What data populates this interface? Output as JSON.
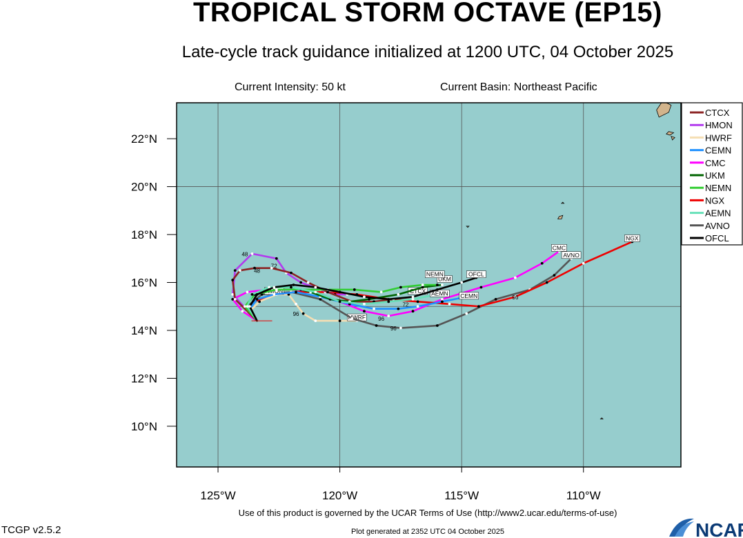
{
  "title": "TROPICAL STORM OCTAVE (EP15)",
  "subtitle": "Late-cycle track guidance initialized at 1200 UTC, 04 October 2025",
  "current_intensity": "Current Intensity: 50 kt",
  "current_basin": "Current Basin: Northeast Pacific",
  "footer": {
    "terms": "Use of this product is governed by the UCAR Terms of Use (http://www2.ucar.edu/terms-of-use)",
    "generated": "Plot generated at 2352 UTC   04 October 2025",
    "version": "TCGP v2.5.2",
    "logo_text": "NCAR"
  },
  "colors": {
    "ocean": "#96cdcd",
    "land": "#d2b48c",
    "grid": "#555555"
  },
  "axes": {
    "lon_range": [
      -126.7,
      -106
    ],
    "lat_range": [
      8.3,
      23.5
    ],
    "lon_ticks": [
      {
        "value": -125,
        "label": "125°W"
      },
      {
        "value": -120,
        "label": "120°W"
      },
      {
        "value": -115,
        "label": "115°W"
      },
      {
        "value": -110,
        "label": "110°W"
      }
    ],
    "lat_ticks": [
      {
        "value": 10,
        "label": "10°N"
      },
      {
        "value": 12,
        "label": "12°N"
      },
      {
        "value": 14,
        "label": "14°N"
      },
      {
        "value": 16,
        "label": "16°N"
      },
      {
        "value": 18,
        "label": "18°N"
      },
      {
        "value": 20,
        "label": "20°N"
      },
      {
        "value": 22,
        "label": "22°N"
      }
    ],
    "grid_lons": [
      -125,
      -120,
      -115,
      -110
    ],
    "grid_lats": [
      15,
      20
    ]
  },
  "storm_position": {
    "lon": -123.4,
    "lat": 14.4
  },
  "legend": [
    {
      "name": "CTCX",
      "color": "#8b2323"
    },
    {
      "name": "HMON",
      "color": "#b23aee"
    },
    {
      "name": "HWRF",
      "color": "#f5deb3"
    },
    {
      "name": "CEMN",
      "color": "#1e90ff"
    },
    {
      "name": "CMC",
      "color": "#ff00ff"
    },
    {
      "name": "UKM",
      "color": "#006400"
    },
    {
      "name": "NEMN",
      "color": "#32cd32"
    },
    {
      "name": "NGX",
      "color": "#ee0000"
    },
    {
      "name": "AEMN",
      "color": "#66e0b8"
    },
    {
      "name": "AVNO",
      "color": "#555555"
    },
    {
      "name": "OFCL",
      "color": "#000000"
    }
  ],
  "tracks": [
    {
      "name": "HWRF",
      "color": "#f5deb3",
      "points": [
        [
          -123.4,
          14.4
        ],
        [
          -123.7,
          14.8
        ],
        [
          -123.3,
          15.2
        ],
        [
          -122.6,
          15.5
        ],
        [
          -122.1,
          15.5
        ],
        [
          -121.8,
          15.1
        ],
        [
          -121.5,
          14.7
        ],
        [
          -121.0,
          14.4
        ],
        [
          -120.0,
          14.4
        ],
        [
          -119.3,
          14.4
        ]
      ],
      "labels": [
        {
          "t": "96",
          "lon": -121.8,
          "lat": 14.6
        }
      ],
      "end_label": {
        "text": "HWRF",
        "lon": -119.3,
        "lat": 14.4
      }
    },
    {
      "name": "AVNO",
      "color": "#555555",
      "points": [
        [
          -123.4,
          14.4
        ],
        [
          -123.8,
          15.0
        ],
        [
          -123.2,
          15.5
        ],
        [
          -122.0,
          15.6
        ],
        [
          -120.8,
          15.3
        ],
        [
          -119.5,
          14.5
        ],
        [
          -118.5,
          14.2
        ],
        [
          -117.5,
          14.1
        ],
        [
          -116.0,
          14.2
        ],
        [
          -114.8,
          14.7
        ],
        [
          -113.6,
          15.3
        ],
        [
          -112.2,
          15.7
        ],
        [
          -111.2,
          16.3
        ],
        [
          -110.5,
          17.0
        ]
      ],
      "labels": [
        {
          "t": "96",
          "lon": -117.8,
          "lat": 14.0
        }
      ],
      "end_label": {
        "text": "AVNO",
        "lon": -110.5,
        "lat": 17.0
      }
    },
    {
      "name": "CMC",
      "color": "#ff00ff",
      "points": [
        [
          -123.4,
          14.4
        ],
        [
          -124.0,
          14.8
        ],
        [
          -124.4,
          15.3
        ],
        [
          -123.8,
          15.6
        ],
        [
          -123.0,
          15.7
        ],
        [
          -122.0,
          15.7
        ],
        [
          -121.0,
          15.6
        ],
        [
          -120.0,
          15.2
        ],
        [
          -119.0,
          14.8
        ],
        [
          -118.0,
          14.6
        ],
        [
          -117.0,
          14.8
        ],
        [
          -115.8,
          15.3
        ],
        [
          -114.2,
          15.8
        ],
        [
          -112.8,
          16.2
        ],
        [
          -111.7,
          16.8
        ],
        [
          -111.0,
          17.3
        ]
      ],
      "labels": [
        {
          "t": "96",
          "lon": -118.3,
          "lat": 14.4
        }
      ],
      "end_label": {
        "text": "CMC",
        "lon": -111.0,
        "lat": 17.3
      }
    },
    {
      "name": "NGX",
      "color": "#ee0000",
      "points": [
        [
          -123.4,
          14.4
        ],
        [
          -123.8,
          14.8
        ],
        [
          -123.5,
          15.2
        ],
        [
          -122.8,
          15.5
        ],
        [
          -121.8,
          15.6
        ],
        [
          -120.6,
          15.6
        ],
        [
          -119.3,
          15.5
        ],
        [
          -118.0,
          15.3
        ],
        [
          -116.8,
          15.2
        ],
        [
          -115.5,
          15.1
        ],
        [
          -114.3,
          15.0
        ],
        [
          -112.8,
          15.4
        ],
        [
          -111.5,
          16.0
        ],
        [
          -110.0,
          16.8
        ],
        [
          -108.0,
          17.7
        ]
      ],
      "labels": [
        {
          "t": "96",
          "lon": -112.8,
          "lat": 15.3
        }
      ],
      "end_label": {
        "text": "NGX",
        "lon": -108.0,
        "lat": 17.7
      }
    },
    {
      "name": "HMON",
      "color": "#b23aee",
      "points": [
        [
          -123.4,
          14.4
        ],
        [
          -124.4,
          15.5
        ],
        [
          -124.3,
          16.5
        ],
        [
          -123.6,
          17.2
        ],
        [
          -122.6,
          17.0
        ],
        [
          -122.2,
          16.4
        ],
        [
          -121.6,
          16.0
        ],
        [
          -120.8,
          15.7
        ],
        [
          -120.2,
          15.5
        ],
        [
          -119.7,
          15.5
        ]
      ],
      "labels": [
        {
          "t": "48",
          "lon": -123.9,
          "lat": 17.1
        },
        {
          "t": "72",
          "lon": -122.7,
          "lat": 16.6
        }
      ],
      "end_label": {
        "text": "HMON",
        "lon": -122.7,
        "lat": 15.5
      }
    },
    {
      "name": "CTCX",
      "color": "#8b2323",
      "points": [
        [
          -123.4,
          14.4
        ],
        [
          -124.3,
          15.3
        ],
        [
          -124.4,
          16.1
        ],
        [
          -124.1,
          16.5
        ],
        [
          -123.5,
          16.6
        ],
        [
          -122.8,
          16.6
        ],
        [
          -122.0,
          16.4
        ],
        [
          -121.3,
          16.0
        ],
        [
          -120.5,
          15.6
        ],
        [
          -119.5,
          15.2
        ],
        [
          -118.6,
          15.2
        ],
        [
          -117.8,
          15.3
        ],
        [
          -117.0,
          15.4
        ]
      ],
      "labels": [
        {
          "t": "48",
          "lon": -123.4,
          "lat": 16.4
        }
      ],
      "end_label": {
        "text": "CTCX",
        "lon": -116.8,
        "lat": 15.5
      }
    },
    {
      "name": "CEMN",
      "color": "#1e90ff",
      "points": [
        [
          -123.4,
          14.4
        ],
        [
          -123.7,
          14.9
        ],
        [
          -123.4,
          15.3
        ],
        [
          -122.7,
          15.5
        ],
        [
          -121.8,
          15.6
        ],
        [
          -120.8,
          15.4
        ],
        [
          -119.6,
          15.1
        ],
        [
          -118.6,
          14.9
        ],
        [
          -117.6,
          14.9
        ],
        [
          -116.8,
          15.0
        ],
        [
          -115.8,
          15.2
        ],
        [
          -114.8,
          15.4
        ]
      ],
      "labels": [],
      "end_label": {
        "text": "CEMN",
        "lon": -114.7,
        "lat": 15.3
      }
    },
    {
      "name": "UKM",
      "color": "#006400",
      "points": [
        [
          -123.4,
          14.4
        ],
        [
          -123.7,
          15.0
        ],
        [
          -123.4,
          15.5
        ],
        [
          -122.8,
          15.8
        ],
        [
          -122.0,
          15.8
        ],
        [
          -121.2,
          15.6
        ],
        [
          -120.4,
          15.3
        ],
        [
          -119.6,
          15.2
        ],
        [
          -118.8,
          15.3
        ],
        [
          -117.6,
          15.5
        ],
        [
          -116.6,
          15.8
        ],
        [
          -115.8,
          15.9
        ]
      ],
      "labels": [],
      "end_label": {
        "text": "UKM",
        "lon": -115.7,
        "lat": 16.0
      }
    },
    {
      "name": "NEMN",
      "color": "#32cd32",
      "points": [
        [
          -123.4,
          14.4
        ],
        [
          -123.9,
          15.0
        ],
        [
          -123.5,
          15.5
        ],
        [
          -122.6,
          15.7
        ],
        [
          -121.6,
          15.7
        ],
        [
          -120.5,
          15.7
        ],
        [
          -119.4,
          15.7
        ],
        [
          -118.3,
          15.6
        ],
        [
          -117.5,
          15.8
        ],
        [
          -116.6,
          15.9
        ],
        [
          -116.0,
          15.9
        ]
      ],
      "labels": [],
      "end_label": {
        "text": "NEMN",
        "lon": -116.1,
        "lat": 16.2
      }
    },
    {
      "name": "AEMN",
      "color": "#66e0b8",
      "points": [
        [
          -123.4,
          14.4
        ],
        [
          -123.8,
          15.0
        ],
        [
          -123.6,
          15.5
        ],
        [
          -122.9,
          15.8
        ],
        [
          -122.0,
          15.8
        ],
        [
          -121.0,
          15.6
        ],
        [
          -120.0,
          15.2
        ],
        [
          -119.0,
          15.1
        ],
        [
          -118.0,
          15.2
        ],
        [
          -117.0,
          15.3
        ],
        [
          -116.0,
          15.5
        ]
      ],
      "labels": [],
      "end_label": {
        "text": "AEMN",
        "lon": -115.9,
        "lat": 15.4
      }
    },
    {
      "name": "OFCL",
      "color": "#000000",
      "points": [
        [
          -123.4,
          14.4
        ],
        [
          -123.7,
          15.0
        ],
        [
          -123.4,
          15.5
        ],
        [
          -122.7,
          15.8
        ],
        [
          -121.9,
          15.9
        ],
        [
          -121.0,
          15.8
        ],
        [
          -120.0,
          15.6
        ],
        [
          -119.0,
          15.4
        ],
        [
          -118.0,
          15.3
        ],
        [
          -117.0,
          15.4
        ],
        [
          -116.0,
          15.7
        ],
        [
          -115.0,
          16.0
        ],
        [
          -114.4,
          16.2
        ]
      ],
      "labels": [
        {
          "t": "72",
          "lon": -117.3,
          "lat": 15.0
        }
      ],
      "end_label": {
        "text": "OFCL",
        "lon": -114.4,
        "lat": 16.2
      }
    }
  ],
  "islands": [
    [
      [
        -106.6,
        23.5
      ],
      [
        -106.4,
        23.4
      ],
      [
        -106.5,
        23.1
      ],
      [
        -106.9,
        22.9
      ],
      [
        -107.0,
        23.2
      ],
      [
        -106.8,
        23.5
      ]
    ],
    [
      [
        -106.5,
        22.3
      ],
      [
        -106.3,
        22.25
      ],
      [
        -106.45,
        22.15
      ],
      [
        -106.6,
        22.2
      ]
    ],
    [
      [
        -106.4,
        22.1
      ],
      [
        -106.25,
        22.05
      ],
      [
        -106.35,
        21.95
      ]
    ],
    [
      [
        -111.0,
        18.75
      ],
      [
        -110.85,
        18.8
      ],
      [
        -110.9,
        18.65
      ],
      [
        -111.05,
        18.65
      ]
    ],
    [
      [
        -110.85,
        19.35
      ],
      [
        -110.8,
        19.3
      ],
      [
        -110.9,
        19.3
      ]
    ],
    [
      [
        -114.8,
        18.35
      ],
      [
        -114.7,
        18.35
      ],
      [
        -114.75,
        18.3
      ]
    ],
    [
      [
        -109.25,
        10.35
      ],
      [
        -109.2,
        10.3
      ],
      [
        -109.3,
        10.3
      ]
    ]
  ]
}
